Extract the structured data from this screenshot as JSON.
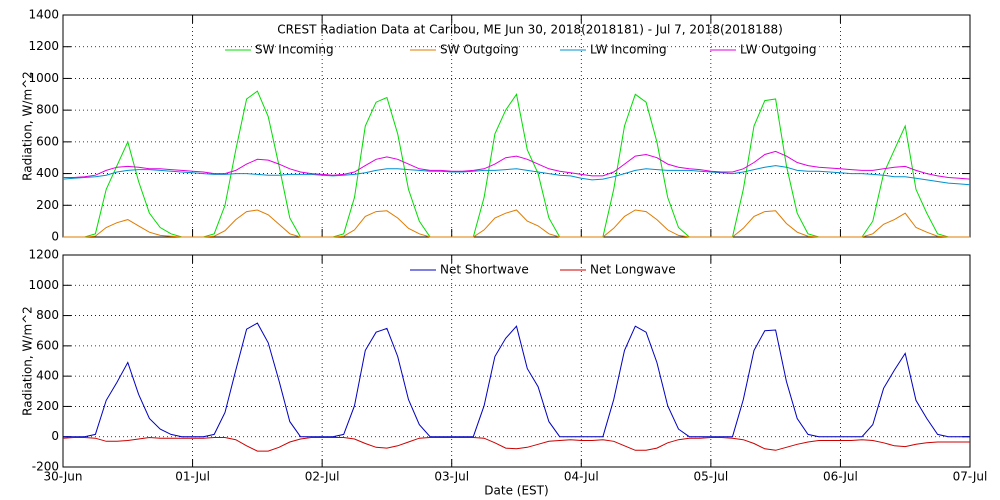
{
  "chart_data": [
    {
      "type": "line",
      "title": "CREST Radiation Data at Caribou, ME   Jun 30, 2018(2018181) - Jul  7, 2018(2018188)",
      "y_label": "Radiation, W/m^2",
      "x": [
        0,
        2,
        4,
        6,
        8,
        10,
        12,
        14,
        16,
        18,
        20,
        22,
        24,
        26,
        28,
        30,
        32,
        34,
        36,
        38,
        40,
        42,
        44,
        46,
        48,
        50,
        52,
        54,
        56,
        58,
        60,
        62,
        64,
        66,
        68,
        70,
        72,
        74,
        76,
        78,
        80,
        82,
        84,
        86,
        88,
        90,
        92,
        94,
        96,
        98,
        100,
        102,
        104,
        106,
        108,
        110,
        112,
        114,
        116,
        118,
        120,
        122,
        124,
        126,
        128,
        130,
        132,
        134,
        136,
        138,
        140,
        142,
        144,
        146,
        148,
        150,
        152,
        154,
        156,
        158,
        160,
        162,
        164,
        166,
        168
      ],
      "xlim": [
        0,
        168
      ],
      "xticks": [
        0,
        24,
        48,
        72,
        96,
        120,
        144,
        168
      ],
      "ylim": [
        0,
        1400
      ],
      "yticks": [
        0,
        200,
        400,
        600,
        800,
        1000,
        1200,
        1400
      ],
      "grid": true,
      "series": [
        {
          "name": "SW Incoming",
          "color": "#00dd00",
          "values": [
            0,
            0,
            0,
            20,
            300,
            450,
            600,
            350,
            150,
            60,
            20,
            0,
            0,
            0,
            20,
            200,
            550,
            870,
            920,
            760,
            450,
            120,
            0,
            0,
            0,
            0,
            20,
            250,
            700,
            850,
            880,
            650,
            300,
            100,
            0,
            0,
            0,
            0,
            0,
            250,
            650,
            800,
            900,
            550,
            400,
            120,
            0,
            0,
            0,
            0,
            0,
            300,
            700,
            900,
            850,
            600,
            250,
            60,
            0,
            0,
            0,
            0,
            0,
            300,
            700,
            860,
            870,
            450,
            150,
            20,
            0,
            0,
            0,
            0,
            0,
            100,
            400,
            550,
            700,
            300,
            150,
            20,
            0,
            0,
            0
          ]
        },
        {
          "name": "SW Outgoing",
          "color": "#e07b00",
          "values": [
            0,
            0,
            0,
            5,
            60,
            90,
            110,
            70,
            30,
            10,
            5,
            0,
            0,
            0,
            5,
            40,
            110,
            160,
            170,
            140,
            80,
            20,
            0,
            0,
            0,
            0,
            5,
            45,
            130,
            160,
            165,
            120,
            55,
            20,
            0,
            0,
            0,
            0,
            0,
            45,
            120,
            150,
            170,
            100,
            70,
            20,
            0,
            0,
            0,
            0,
            0,
            55,
            130,
            170,
            160,
            110,
            45,
            10,
            0,
            0,
            0,
            0,
            0,
            55,
            130,
            160,
            165,
            85,
            30,
            5,
            0,
            0,
            0,
            0,
            0,
            20,
            80,
            110,
            150,
            60,
            30,
            5,
            0,
            0,
            0
          ]
        },
        {
          "name": "LW Incoming",
          "color": "#0090d0",
          "values": [
            365,
            370,
            375,
            380,
            390,
            410,
            420,
            425,
            425,
            420,
            415,
            410,
            405,
            400,
            395,
            395,
            400,
            400,
            395,
            390,
            390,
            395,
            395,
            395,
            390,
            385,
            390,
            395,
            405,
            420,
            430,
            430,
            425,
            420,
            415,
            415,
            410,
            410,
            415,
            420,
            420,
            425,
            430,
            420,
            410,
            400,
            390,
            385,
            370,
            360,
            365,
            380,
            400,
            420,
            430,
            425,
            420,
            420,
            420,
            415,
            410,
            405,
            400,
            410,
            425,
            440,
            450,
            440,
            420,
            415,
            415,
            410,
            405,
            400,
            400,
            395,
            390,
            380,
            380,
            370,
            360,
            350,
            340,
            335,
            330
          ]
        },
        {
          "name": "LW Outgoing",
          "color": "#e000e0",
          "values": [
            375,
            375,
            380,
            390,
            420,
            440,
            445,
            440,
            430,
            430,
            425,
            420,
            415,
            410,
            400,
            400,
            420,
            460,
            490,
            485,
            460,
            430,
            410,
            400,
            395,
            390,
            395,
            410,
            450,
            490,
            505,
            490,
            460,
            430,
            420,
            420,
            415,
            415,
            420,
            430,
            460,
            500,
            510,
            490,
            460,
            430,
            415,
            405,
            395,
            385,
            385,
            410,
            460,
            510,
            520,
            500,
            460,
            440,
            430,
            425,
            415,
            410,
            410,
            430,
            470,
            520,
            540,
            510,
            470,
            450,
            440,
            435,
            430,
            425,
            420,
            420,
            430,
            440,
            445,
            420,
            400,
            385,
            375,
            370,
            365
          ]
        }
      ]
    },
    {
      "type": "line",
      "x_label": "Date (EST)",
      "y_label": "Radiation, W/m^2",
      "x": [
        0,
        2,
        4,
        6,
        8,
        10,
        12,
        14,
        16,
        18,
        20,
        22,
        24,
        26,
        28,
        30,
        32,
        34,
        36,
        38,
        40,
        42,
        44,
        46,
        48,
        50,
        52,
        54,
        56,
        58,
        60,
        62,
        64,
        66,
        68,
        70,
        72,
        74,
        76,
        78,
        80,
        82,
        84,
        86,
        88,
        90,
        92,
        94,
        96,
        98,
        100,
        102,
        104,
        106,
        108,
        110,
        112,
        114,
        116,
        118,
        120,
        122,
        124,
        126,
        128,
        130,
        132,
        134,
        136,
        138,
        140,
        142,
        144,
        146,
        148,
        150,
        152,
        154,
        156,
        158,
        160,
        162,
        164,
        166,
        168
      ],
      "xlim": [
        0,
        168
      ],
      "xticks": [
        {
          "value": 0,
          "label": "30-Jun"
        },
        {
          "value": 24,
          "label": "01-Jul"
        },
        {
          "value": 48,
          "label": "02-Jul"
        },
        {
          "value": 72,
          "label": "03-Jul"
        },
        {
          "value": 96,
          "label": "04-Jul"
        },
        {
          "value": 120,
          "label": "05-Jul"
        },
        {
          "value": 144,
          "label": "06-Jul"
        },
        {
          "value": 168,
          "label": "07-Jul"
        }
      ],
      "ylim": [
        -200,
        1200
      ],
      "yticks": [
        -200,
        0,
        200,
        400,
        600,
        800,
        1000,
        1200
      ],
      "grid": true,
      "series": [
        {
          "name": "Net Shortwave",
          "color": "#0000c0",
          "values": [
            0,
            0,
            0,
            15,
            240,
            360,
            490,
            280,
            120,
            50,
            15,
            0,
            0,
            0,
            15,
            160,
            440,
            710,
            750,
            620,
            370,
            100,
            0,
            0,
            0,
            0,
            15,
            205,
            570,
            690,
            715,
            530,
            245,
            80,
            0,
            0,
            0,
            0,
            0,
            205,
            530,
            650,
            730,
            450,
            330,
            100,
            0,
            0,
            0,
            0,
            0,
            245,
            570,
            730,
            690,
            490,
            205,
            50,
            0,
            0,
            0,
            0,
            0,
            245,
            570,
            700,
            705,
            365,
            120,
            15,
            0,
            0,
            0,
            0,
            0,
            80,
            320,
            440,
            550,
            240,
            120,
            15,
            0,
            0,
            0
          ]
        },
        {
          "name": "Net Longwave",
          "color": "#cc0000",
          "values": [
            -10,
            -5,
            -5,
            -10,
            -30,
            -30,
            -25,
            -15,
            -5,
            -10,
            -10,
            -10,
            -10,
            -10,
            -5,
            -5,
            -20,
            -60,
            -95,
            -95,
            -70,
            -35,
            -15,
            -5,
            -5,
            -5,
            -5,
            -15,
            -45,
            -70,
            -75,
            -60,
            -35,
            -10,
            -5,
            -5,
            -5,
            -5,
            -5,
            -10,
            -40,
            -75,
            -80,
            -70,
            -50,
            -30,
            -25,
            -20,
            -25,
            -25,
            -20,
            -30,
            -60,
            -90,
            -90,
            -75,
            -40,
            -20,
            -10,
            -10,
            -5,
            -5,
            -10,
            -20,
            -45,
            -80,
            -90,
            -70,
            -50,
            -35,
            -25,
            -25,
            -25,
            -25,
            -20,
            -25,
            -40,
            -60,
            -65,
            -50,
            -40,
            -35,
            -35,
            -35,
            -35
          ]
        }
      ]
    }
  ]
}
